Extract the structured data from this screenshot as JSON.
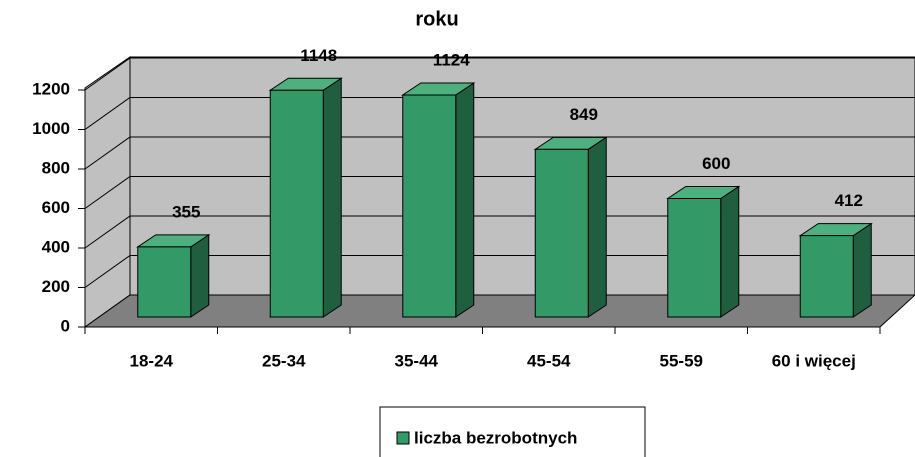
{
  "chart_data": {
    "type": "bar3d",
    "title": "roku",
    "categories": [
      "18-24",
      "25-34",
      "35-44",
      "45-54",
      "55-59",
      "60 i więcej"
    ],
    "series": [
      {
        "name": "liczba bezrobotnych",
        "color": "#339966",
        "values": [
          355,
          1148,
          1124,
          849,
          600,
          412
        ]
      }
    ],
    "ylim": [
      0,
      1200
    ],
    "yticks": [
      0,
      200,
      400,
      600,
      800,
      1000,
      1200
    ],
    "grid": true,
    "legend": "bottom"
  }
}
